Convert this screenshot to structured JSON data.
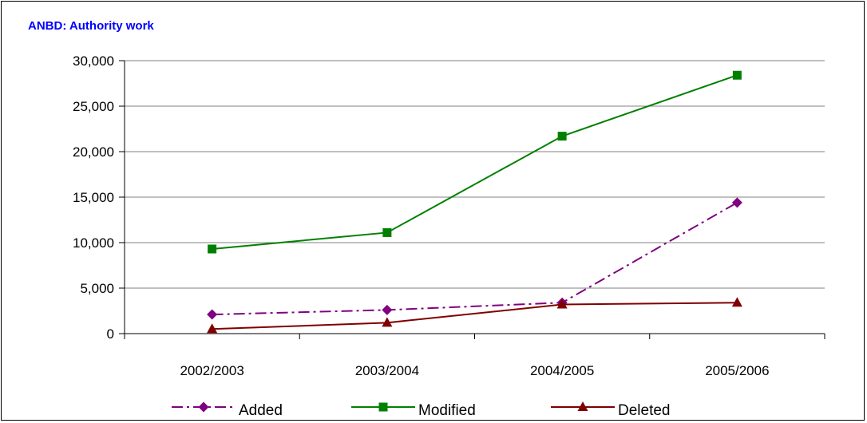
{
  "chart_data": {
    "type": "line",
    "title": "ANBD: Authority work",
    "xlabel": "",
    "ylabel": "",
    "categories": [
      "2002/2003",
      "2003/2004",
      "2004/2005",
      "2005/2006"
    ],
    "ylim": [
      0,
      30000
    ],
    "yticks": [
      0,
      5000,
      10000,
      15000,
      20000,
      25000,
      30000
    ],
    "ytick_labels": [
      "0",
      "5,000",
      "10,000",
      "15,000",
      "20,000",
      "25,000",
      "30,000"
    ],
    "grid": true,
    "legend_position": "bottom",
    "series": [
      {
        "name": "Added",
        "values": [
          2100,
          2600,
          3400,
          14400
        ],
        "color": "#800080",
        "marker": "diamond",
        "dash": "dash-dot"
      },
      {
        "name": "Modified",
        "values": [
          9300,
          11100,
          21700,
          28400
        ],
        "color": "#008000",
        "marker": "square",
        "dash": "solid"
      },
      {
        "name": "Deleted",
        "values": [
          500,
          1200,
          3200,
          3400
        ],
        "color": "#800000",
        "marker": "triangle",
        "dash": "solid"
      }
    ]
  }
}
